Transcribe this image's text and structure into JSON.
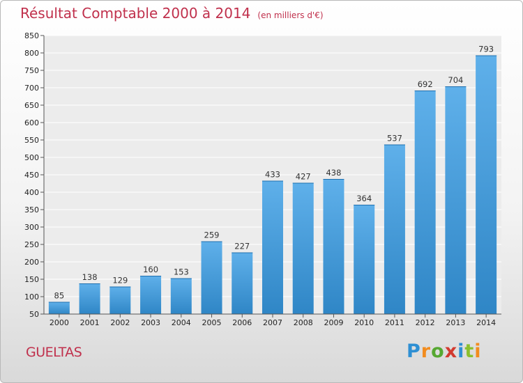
{
  "chart_data": {
    "type": "bar",
    "title": "Résultat Comptable 2000 à 2014",
    "subtitle": "(en milliers d'€)",
    "categories": [
      "2000",
      "2001",
      "2002",
      "2003",
      "2004",
      "2005",
      "2006",
      "2007",
      "2008",
      "2009",
      "2010",
      "2011",
      "2012",
      "2013",
      "2014"
    ],
    "values": [
      85,
      138,
      129,
      160,
      153,
      259,
      227,
      433,
      427,
      438,
      364,
      537,
      692,
      704,
      793
    ],
    "ylim": [
      50,
      850
    ],
    "yticks": [
      50,
      100,
      150,
      200,
      250,
      300,
      350,
      400,
      450,
      500,
      550,
      600,
      650,
      700,
      750,
      800,
      850
    ],
    "xlabel": "",
    "ylabel": "",
    "grid": true,
    "bar_color": "#3d98d8"
  },
  "footer": {
    "commune": "GUELTAS",
    "brand_letters": [
      "P",
      "r",
      "o",
      "x",
      "i",
      "t",
      "i"
    ],
    "brand_colors": [
      "#2e8fd3",
      "#f28c1e",
      "#56a832",
      "#d23a2f",
      "#2e8fd3",
      "#8bbf2e",
      "#f28c1e"
    ]
  },
  "colors": {
    "title": "#c0304c"
  }
}
